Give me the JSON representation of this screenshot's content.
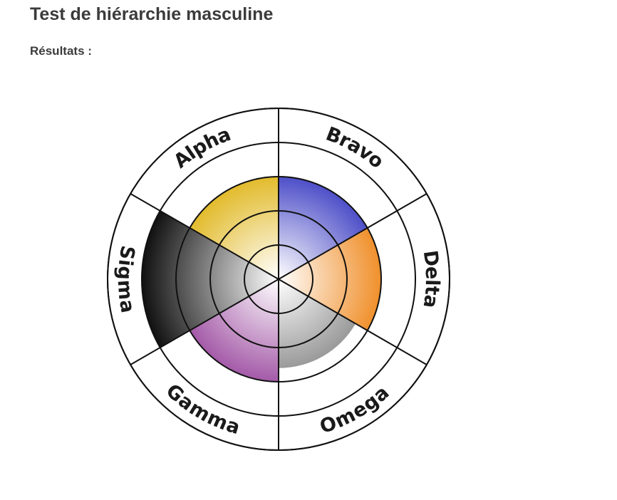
{
  "page": {
    "title": "Test de hiérarchie masculine",
    "results_label": "Résultats :"
  },
  "chart_data": {
    "type": "polar-area",
    "title": "",
    "grid": true,
    "rmax": 5,
    "categories": [
      "Alpha",
      "Bravo",
      "Delta",
      "Omega",
      "Gamma",
      "Sigma"
    ],
    "values": [
      3.0,
      3.0,
      3.0,
      2.6,
      3.0,
      4.0
    ],
    "colors": [
      "#e2bb2c",
      "#4e4fc8",
      "#f0902c",
      "#9a9a9a",
      "#a45aa8",
      "#111111"
    ]
  }
}
